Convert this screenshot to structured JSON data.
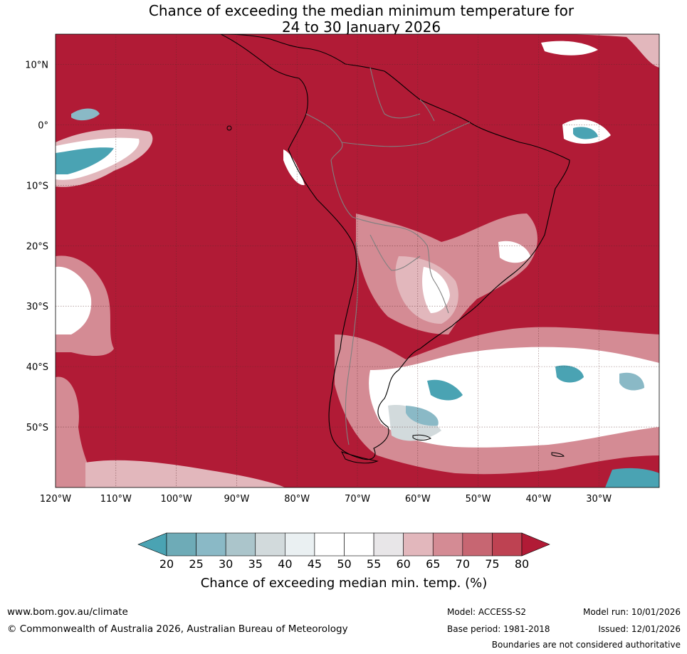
{
  "title": {
    "line1": "Chance of exceeding the median minimum temperature for",
    "line2": "24 to 30 January 2026"
  },
  "map": {
    "lat_ticks": [
      "10°N",
      "0°",
      "10°S",
      "20°S",
      "30°S",
      "40°S",
      "50°S"
    ],
    "lon_ticks": [
      "120°W",
      "110°W",
      "100°W",
      "90°W",
      "80°W",
      "70°W",
      "60°W",
      "50°W",
      "40°W",
      "30°W"
    ],
    "extent": {
      "lon_min": -120,
      "lon_max": -20,
      "lat_min": -60,
      "lat_max": 15
    }
  },
  "colorbar": {
    "title": "Chance of exceeding median min. temp. (%)",
    "tick_labels": [
      "20",
      "25",
      "30",
      "35",
      "40",
      "45",
      "50",
      "55",
      "60",
      "65",
      "70",
      "75",
      "80"
    ],
    "colors": [
      "#4aa3b3",
      "#6eabb7",
      "#8ab9c6",
      "#abc5cb",
      "#d2dadc",
      "#eaf0f2",
      "#ffffff",
      "#ffffff",
      "#e8e6e8",
      "#e2b7bc",
      "#d48b94",
      "#c76672",
      "#be4252",
      "#b11b36"
    ]
  },
  "footer": {
    "url": "www.bom.gov.au/climate",
    "copyright": "© Commonwealth of Australia 2026, Australian Bureau of Meteorology",
    "model": "Model: ACCESS-S2",
    "base_period": "Base period: 1981-2018",
    "model_run": "Model run: 10/01/2026",
    "issued": "Issued: 12/01/2026",
    "disclaimer": "Boundaries are not considered authoritative"
  },
  "colors": {
    "high": "#b11b36",
    "mid_high": "#c76672",
    "light_red": "#e2b7bc",
    "neutral": "#ffffff",
    "light_blue": "#8ab9c6",
    "blue": "#4aa3b3"
  }
}
